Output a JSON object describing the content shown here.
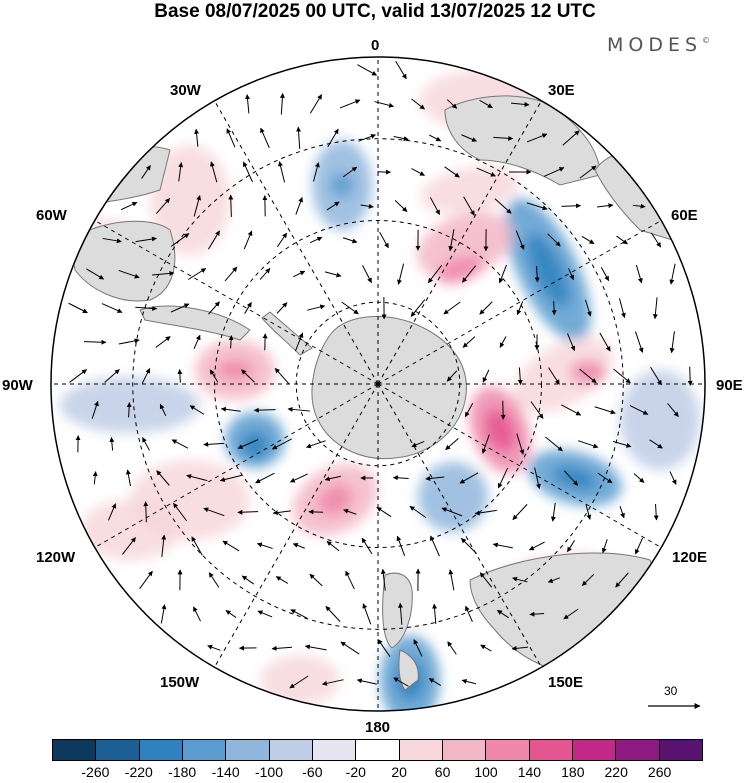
{
  "title": "Base 08/07/2025 00 UTC, valid 13/07/2025 12 UTC",
  "brand": "MODES",
  "brand_mark": "©",
  "longitude_labels": {
    "top": "0",
    "deg30e": "30E",
    "deg60e": "60E",
    "deg90e": "90E",
    "deg120e": "120E",
    "deg150e": "150E",
    "bottom": "180",
    "deg150w": "150W",
    "deg120w": "120W",
    "deg90w": "90W",
    "deg60w": "60W",
    "deg30w": "30W"
  },
  "reference_vector_label": "30",
  "colorbar": {
    "ticks": [
      "-260",
      "-220",
      "-180",
      "-140",
      "-100",
      "-60",
      "-20",
      "20",
      "60",
      "100",
      "140",
      "180",
      "220",
      "260"
    ],
    "colors": [
      "#0b3a5e",
      "#1b5f94",
      "#2f82bf",
      "#5a9ccf",
      "#8fb6dc",
      "#c0cde6",
      "#e6e6f2",
      "#ffffff",
      "#f7d7dc",
      "#f3b6c7",
      "#ef88ab",
      "#e55592",
      "#c2278a",
      "#8d1a82",
      "#5a1270"
    ]
  },
  "colors": {
    "land": "#dcdcdc",
    "coast": "#777777",
    "grid": "#000000",
    "vector": "#000000"
  }
}
